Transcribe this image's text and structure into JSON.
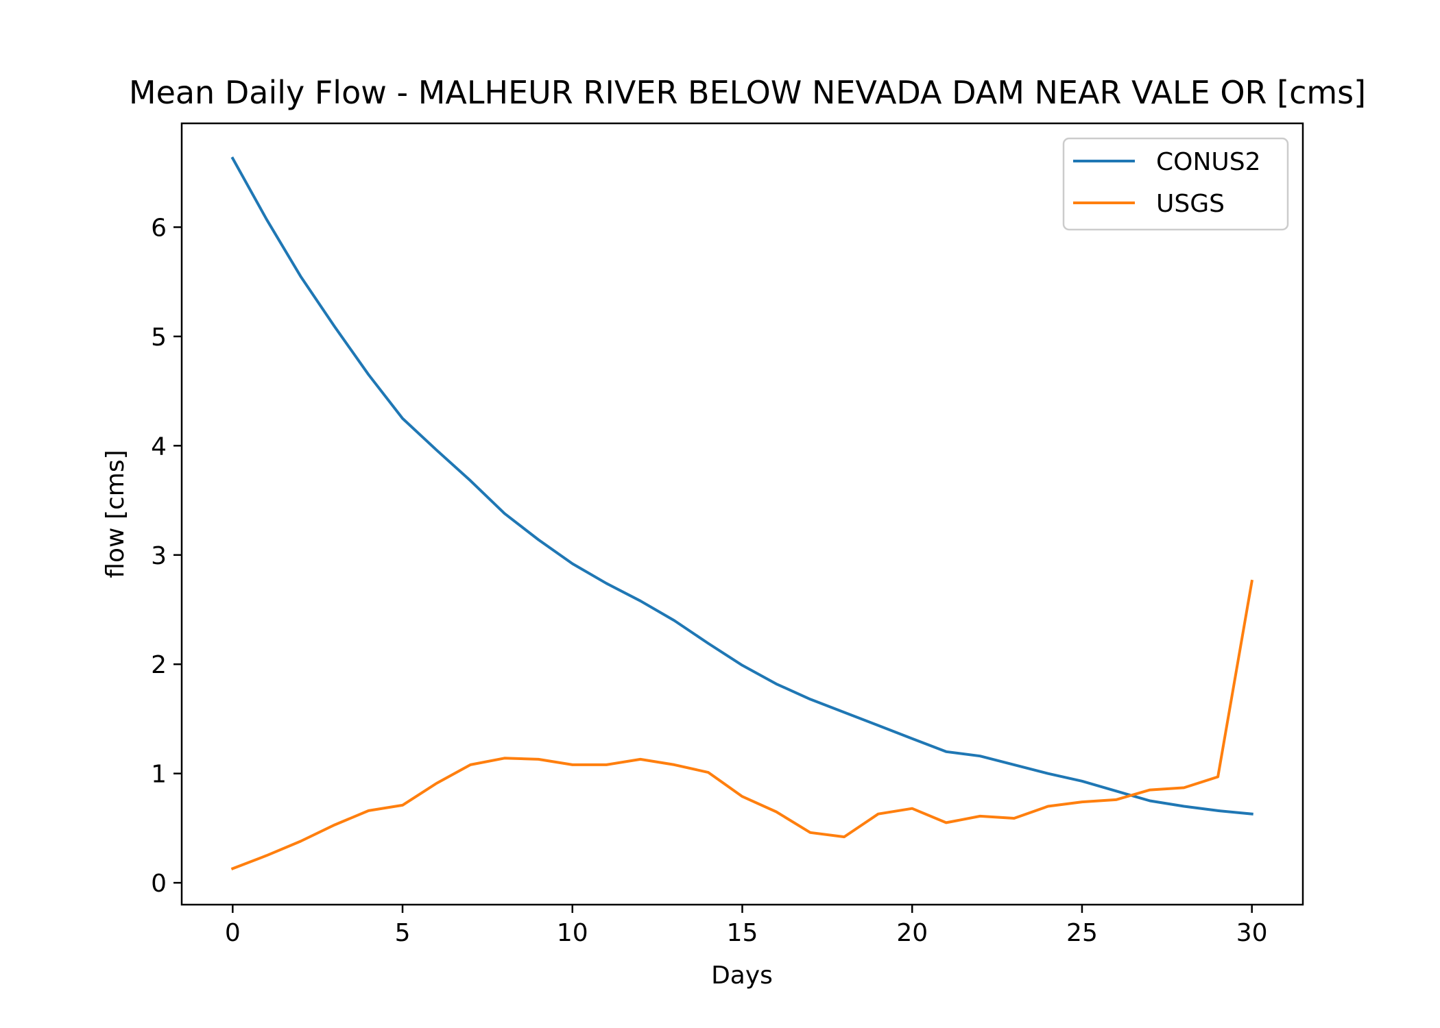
{
  "chart_data": {
    "type": "line",
    "title": "Mean Daily Flow - MALHEUR RIVER BELOW NEVADA DAM NEAR VALE OR [cms]",
    "xlabel": "Days",
    "ylabel": "flow [cms]",
    "xlim": [
      -1.5,
      31.5
    ],
    "ylim": [
      -0.2,
      6.95
    ],
    "xticks": [
      0,
      5,
      10,
      15,
      20,
      25,
      30
    ],
    "yticks": [
      0,
      1,
      2,
      3,
      4,
      5,
      6
    ],
    "grid": false,
    "legend_position": "top-right",
    "x": [
      0,
      1,
      2,
      3,
      4,
      5,
      6,
      7,
      8,
      9,
      10,
      11,
      12,
      13,
      14,
      15,
      16,
      17,
      18,
      19,
      20,
      21,
      22,
      23,
      24,
      25,
      26,
      27,
      28,
      29,
      30
    ],
    "series": [
      {
        "name": "CONUS2",
        "color": "#1f77b4",
        "values": [
          6.63,
          6.07,
          5.55,
          5.09,
          4.65,
          4.25,
          3.96,
          3.68,
          3.38,
          3.14,
          2.92,
          2.74,
          2.58,
          2.4,
          2.19,
          1.99,
          1.82,
          1.68,
          1.56,
          1.44,
          1.32,
          1.2,
          1.16,
          1.08,
          1.0,
          0.93,
          0.84,
          0.75,
          0.7,
          0.66,
          0.63
        ]
      },
      {
        "name": "USGS",
        "color": "#ff7f0e",
        "values": [
          0.13,
          0.25,
          0.38,
          0.53,
          0.66,
          0.71,
          0.91,
          1.08,
          1.14,
          1.13,
          1.08,
          1.08,
          1.13,
          1.08,
          1.01,
          0.79,
          0.65,
          0.46,
          0.42,
          0.63,
          0.68,
          0.55,
          0.61,
          0.59,
          0.7,
          0.74,
          0.76,
          0.85,
          0.87,
          0.97,
          2.76
        ]
      }
    ]
  }
}
